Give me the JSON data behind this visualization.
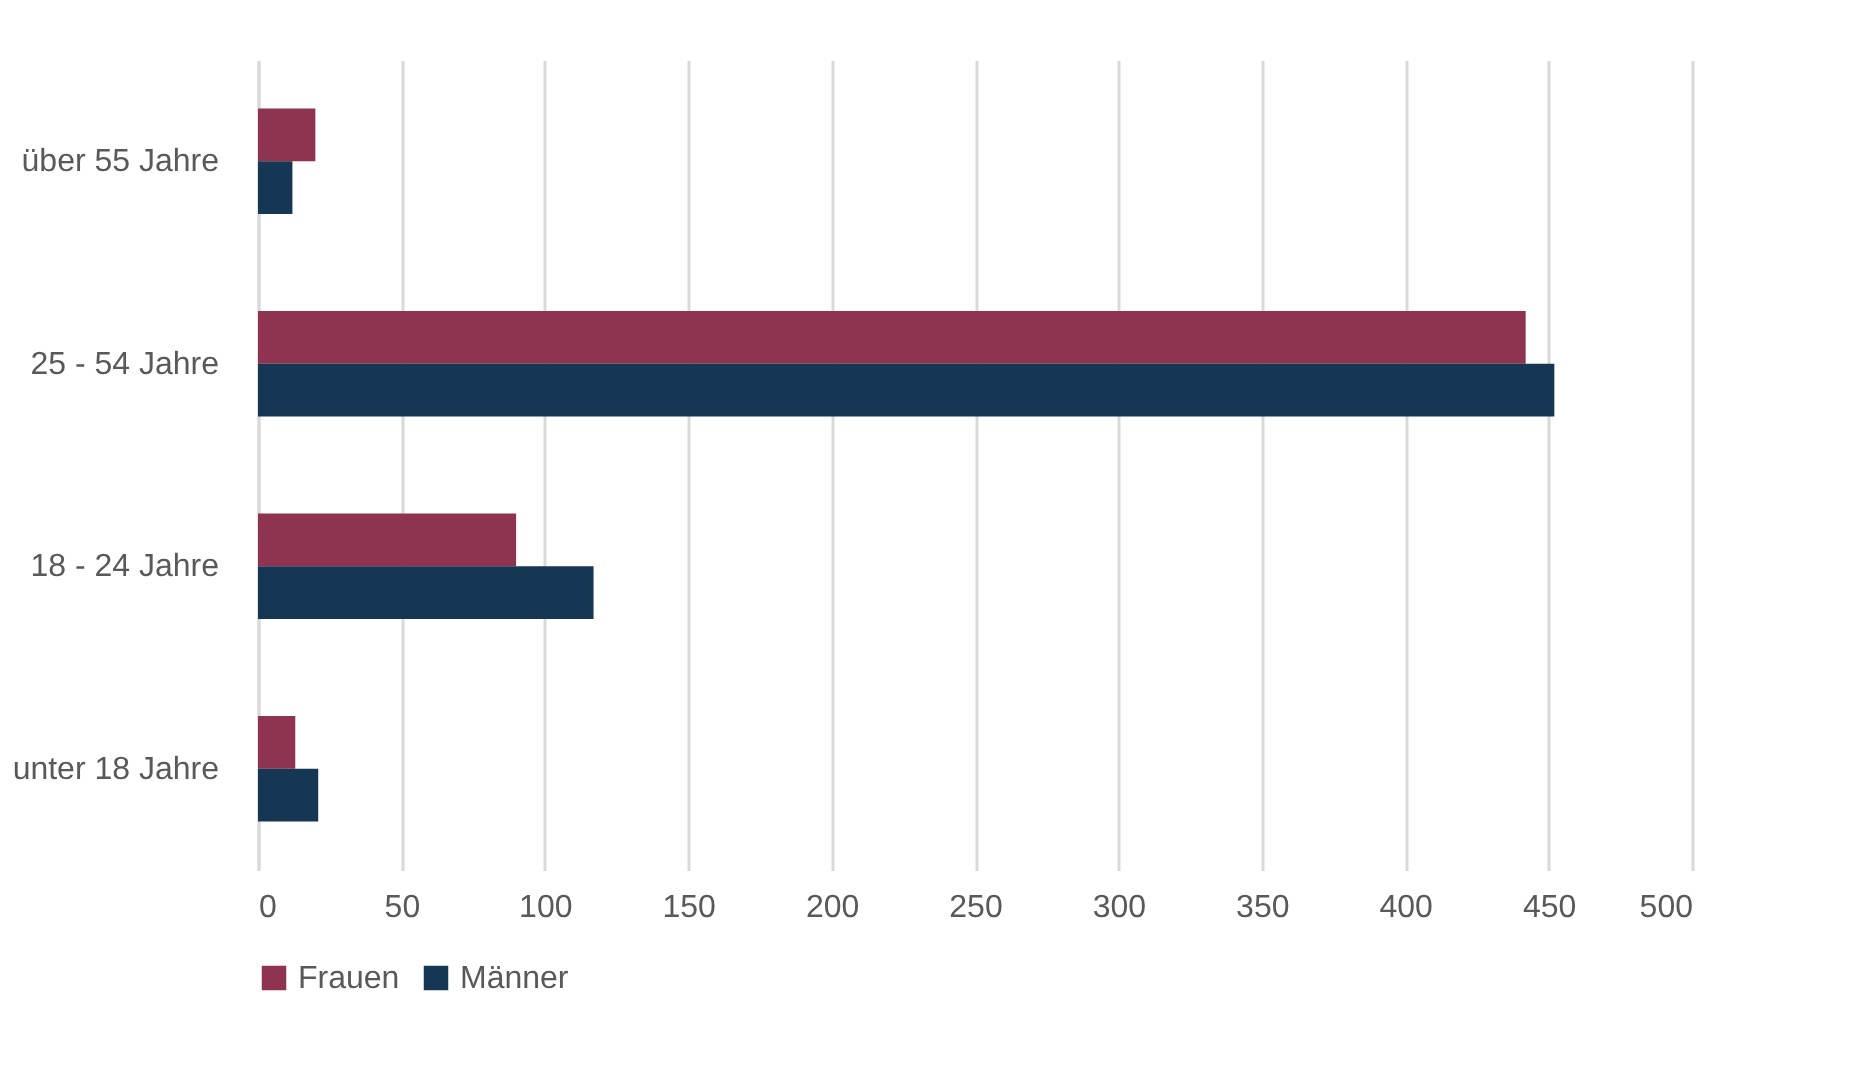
{
  "chart_data": {
    "type": "bar",
    "orientation": "horizontal",
    "categories": [
      "über 55 Jahre",
      "25 - 54 Jahre",
      "18 - 24 Jahre",
      "unter 18 Jahre"
    ],
    "series": [
      {
        "name": "Frauen",
        "color": "#8e3350",
        "values": [
          20,
          442,
          90,
          13
        ]
      },
      {
        "name": "Männer",
        "color": "#163754",
        "values": [
          12,
          452,
          117,
          21
        ]
      }
    ],
    "xlim": [
      0,
      500
    ],
    "xticks": [
      0,
      50,
      100,
      150,
      200,
      250,
      300,
      350,
      400,
      450,
      500
    ],
    "grid": "x",
    "legend": "bottom"
  }
}
